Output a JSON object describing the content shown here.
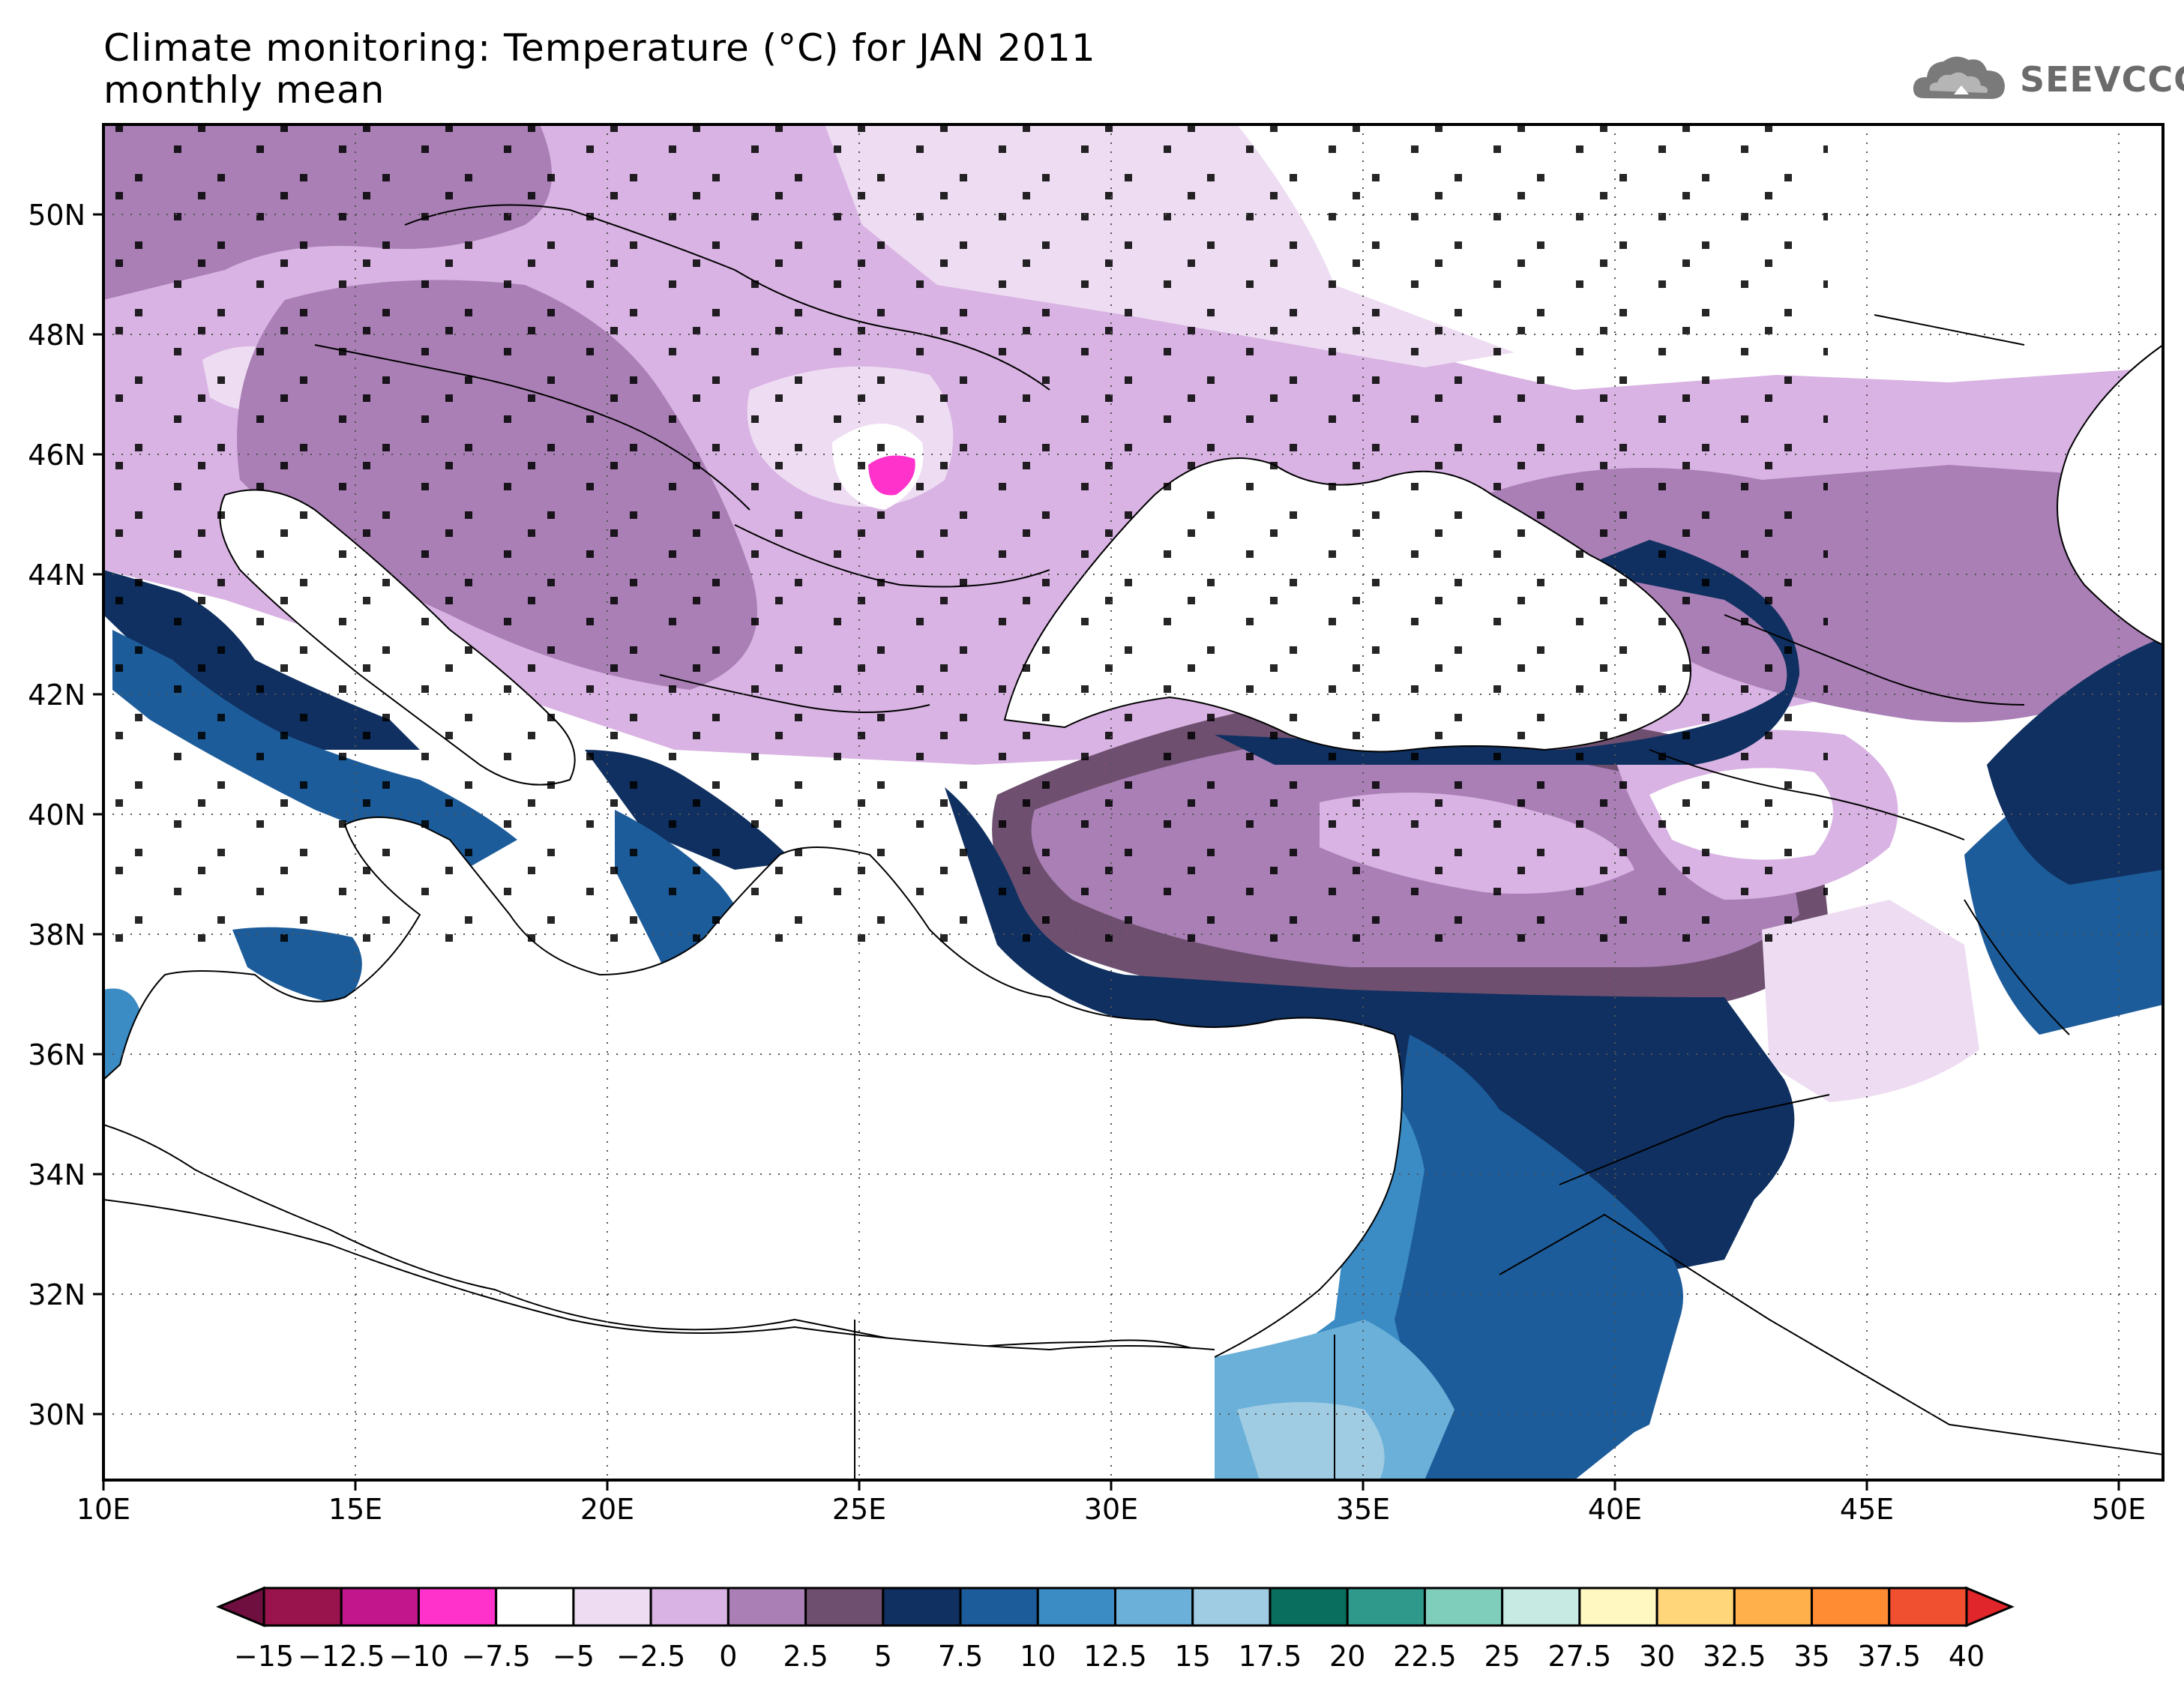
{
  "title": {
    "line1": "Climate monitoring: Temperature (°C) for JAN 2011",
    "line2": "monthly mean"
  },
  "logo": {
    "text": "SEEVCCC",
    "icon": "cloud-icon"
  },
  "map": {
    "lon_labels": [
      "10E",
      "15E",
      "20E",
      "25E",
      "30E",
      "35E",
      "40E",
      "45E",
      "50E"
    ],
    "lat_labels": [
      "50N",
      "48N",
      "46N",
      "44N",
      "42N",
      "40N",
      "38N",
      "36N",
      "34N",
      "32N",
      "30N"
    ]
  },
  "colorbar": {
    "labels": [
      "-15",
      "-12.5",
      "-10",
      "-7.5",
      "-5",
      "-2.5",
      "0",
      "2.5",
      "5",
      "7.5",
      "10",
      "12.5",
      "15",
      "17.5",
      "20",
      "22.5",
      "25",
      "27.5",
      "30",
      "32.5",
      "35",
      "37.5",
      "40"
    ],
    "colors": [
      "#99134d",
      "#c2178c",
      "#ff33cc",
      "#ffffff",
      "#eeddf2",
      "#d9b3e3",
      "#a97fb5",
      "#6e4f6f",
      "#0f3060",
      "#1d5c9a",
      "#3b8bc4",
      "#6ab0d8",
      "#9fcbe3",
      "#0a6e5e",
      "#2f9a8c",
      "#7fcdbb",
      "#c7eae2",
      "#fff8c0",
      "#ffd77a",
      "#ffb04a",
      "#ff8b33",
      "#f05030"
    ],
    "left_arrow_color": "#6e0f3f",
    "right_arrow_color": "#e0262b"
  }
}
